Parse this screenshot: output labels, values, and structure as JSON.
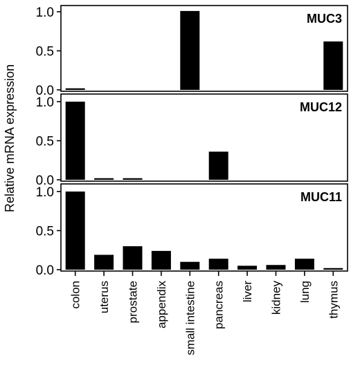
{
  "chart_data": {
    "type": "bar",
    "ylabel": "Relative mRNA expression",
    "categories": [
      "colon",
      "uterus",
      "prostate",
      "appendix",
      "small intestine",
      "pancreas",
      "liver",
      "kidney",
      "lung",
      "thymus"
    ],
    "ylim": [
      0,
      1.1
    ],
    "yticks": [
      "0.0",
      "0.5",
      "1.0"
    ],
    "panels": [
      {
        "title": "MUC3",
        "values": [
          0.02,
          0,
          0,
          0,
          1.01,
          0,
          0,
          0,
          0,
          0.62
        ]
      },
      {
        "title": "MUC12",
        "values": [
          1.0,
          0.02,
          0.02,
          0,
          0,
          0.36,
          0,
          0,
          0,
          0
        ]
      },
      {
        "title": "MUC11",
        "values": [
          1.0,
          0.19,
          0.3,
          0.24,
          0.1,
          0.14,
          0.05,
          0.06,
          0.14,
          0.02
        ]
      }
    ],
    "bar_color": "#000000",
    "grid": false
  }
}
